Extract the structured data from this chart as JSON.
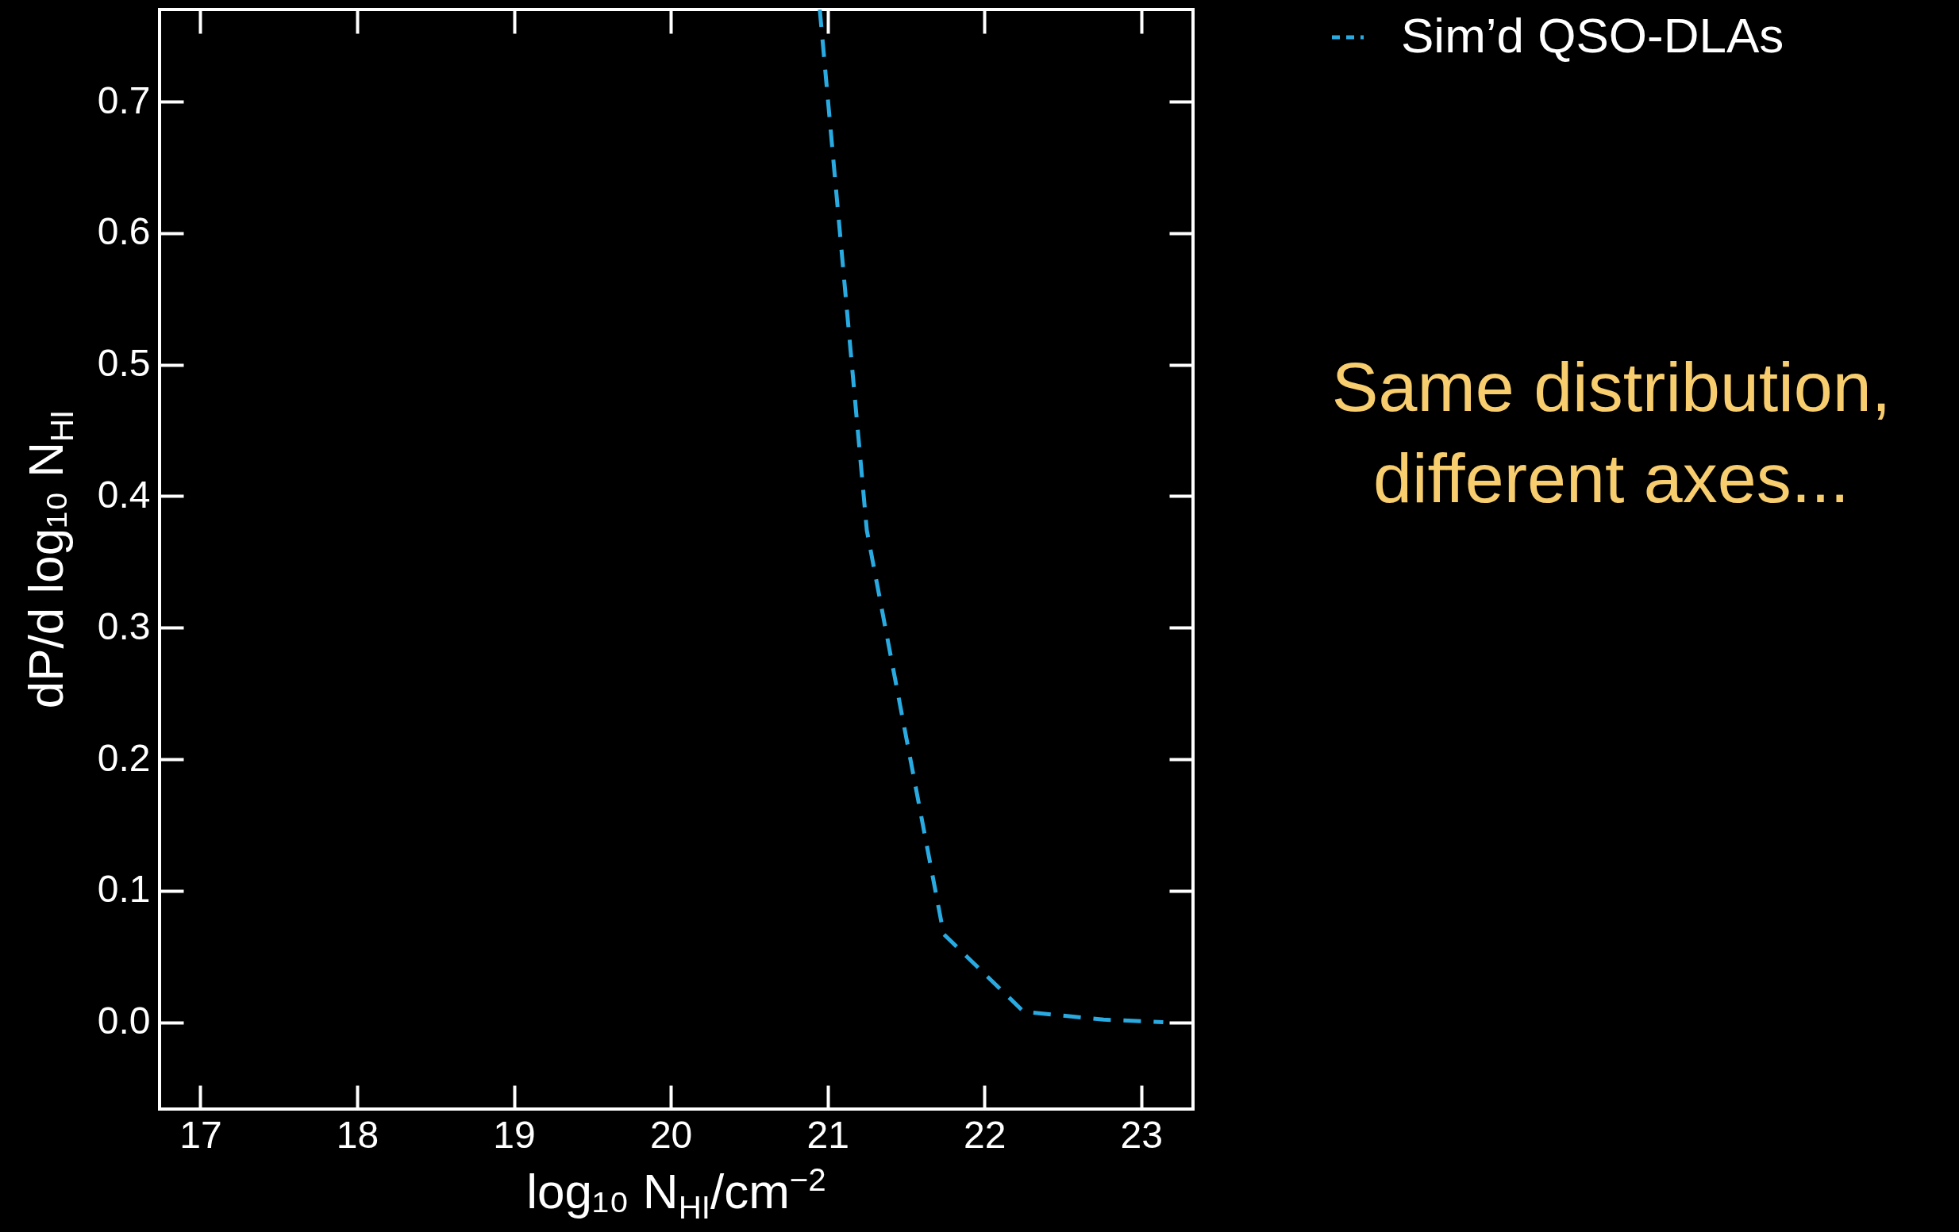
{
  "chart_data": {
    "type": "line",
    "xlabel": "log₁₀ N$_{HI}$/cm$^{−2}$",
    "ylabel": "dP/d log₁₀ N$_{HI}$",
    "series": [
      {
        "name": "Sim’d QSO-DLAs",
        "color": "#29abe2",
        "x": [
          20.95,
          21.25,
          21.74,
          22.25,
          22.76,
          23.14
        ],
        "values": [
          0.77,
          0.374,
          0.067,
          0.008,
          0.002,
          0.0
        ]
      }
    ],
    "xlim": [
      16.74,
      23.33
    ],
    "ylim": [
      -0.066,
      0.77
    ],
    "xticks": [
      17,
      18,
      19,
      20,
      21,
      22,
      23
    ],
    "yticks": [
      {
        "value": 0,
        "label": "0.0"
      },
      0.1,
      0.2,
      0.3,
      0.4,
      0.5,
      0.6,
      0.7
    ],
    "grid": false,
    "legend": "top right",
    "line_style": "dashed",
    "marker": "none",
    "annotations": [
      "Same distribution, different axes..."
    ]
  }
}
